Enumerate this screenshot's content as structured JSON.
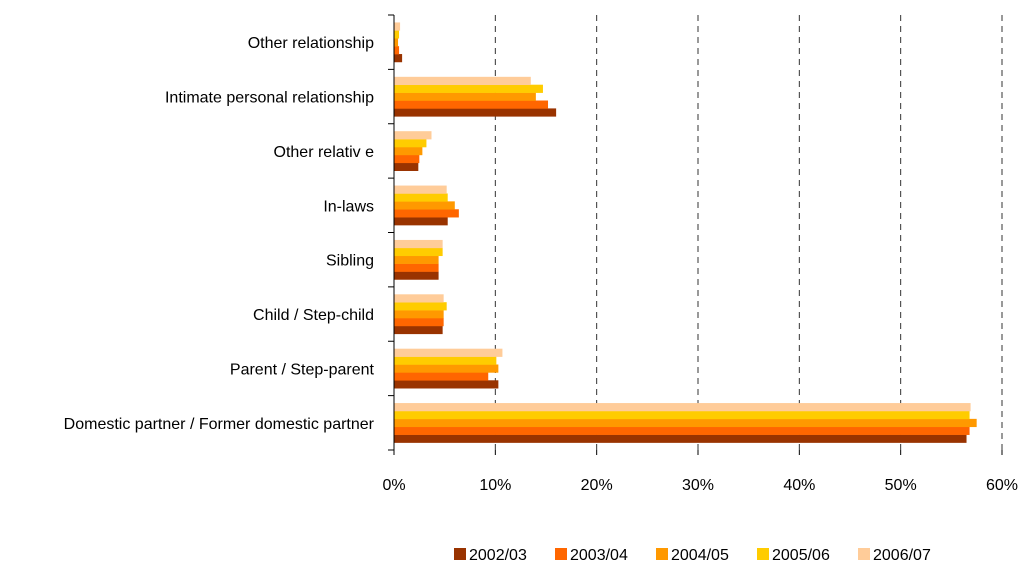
{
  "chart_data": {
    "type": "bar",
    "orientation": "horizontal",
    "categories": [
      "Domestic partner / Former domestic partner",
      "Parent / Step-parent",
      "Child / Step-child",
      "Sibling",
      "In-laws",
      "Other relativ e",
      "Intimate personal relationship",
      "Other relationship"
    ],
    "series": [
      {
        "name": "2002/03",
        "color": "#993300",
        "values": [
          56.5,
          10.3,
          4.8,
          4.4,
          5.3,
          2.4,
          16.0,
          0.8
        ]
      },
      {
        "name": "2003/04",
        "color": "#FF6600",
        "values": [
          56.8,
          9.3,
          4.9,
          4.4,
          6.4,
          2.5,
          15.2,
          0.5
        ]
      },
      {
        "name": "2004/05",
        "color": "#FF9900",
        "values": [
          57.5,
          10.3,
          4.9,
          4.4,
          6.0,
          2.8,
          14.0,
          0.4
        ]
      },
      {
        "name": "2005/06",
        "color": "#FFCC00",
        "values": [
          56.8,
          10.1,
          5.2,
          4.8,
          5.3,
          3.2,
          14.7,
          0.5
        ]
      },
      {
        "name": "2006/07",
        "color": "#FFCC99",
        "values": [
          56.9,
          10.7,
          4.9,
          4.8,
          5.2,
          3.7,
          13.5,
          0.6
        ]
      }
    ],
    "xlim": [
      0,
      60
    ],
    "xticks": [
      "0%",
      "10%",
      "20%",
      "30%",
      "40%",
      "50%",
      "60%"
    ],
    "grid": "vertical dashed",
    "legend_position": "bottom"
  }
}
